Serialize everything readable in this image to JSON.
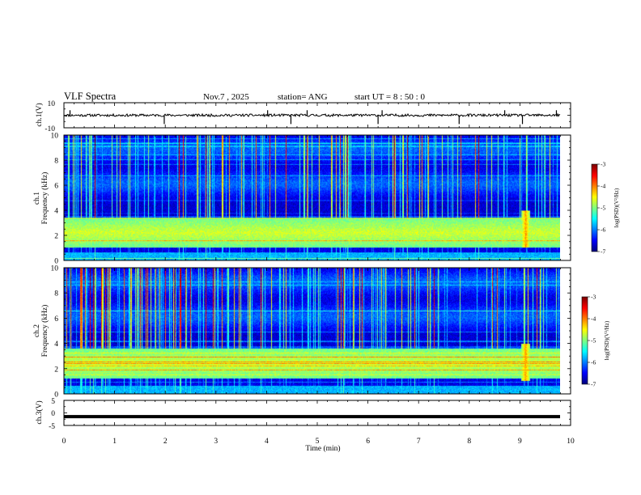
{
  "header": {
    "title": "VLF Spectra",
    "date": "Nov.7 , 2025",
    "station": "station= ANG",
    "start": "start UT = 8 : 50 : 0"
  },
  "chart_data": [
    {
      "type": "line",
      "name": "ch1-waveform",
      "ylabel": "ch.1(V)",
      "ylim": [
        -10,
        10
      ],
      "yticks": [
        "10",
        "-10"
      ],
      "xlim": [
        0,
        10
      ],
      "baseline": 0,
      "noise_amplitude": 1,
      "spikes_min": [
        0.12,
        1.98,
        4.02,
        4.48,
        4.8,
        6.2,
        6.28,
        7.8,
        8.7,
        9.05,
        9.72
      ]
    },
    {
      "type": "heatmap",
      "name": "ch1-spectrogram",
      "ylabel": "Frequency (kHz)",
      "channel_label": "ch.1",
      "ylim": [
        0,
        10
      ],
      "yticks": [
        "0",
        "2",
        "4",
        "6",
        "8",
        "10"
      ],
      "xlim": [
        0,
        10
      ],
      "enhanced_band_khz": [
        1.0,
        3.4
      ],
      "quiet_band_khz": [
        3.5,
        4.7
      ],
      "burst_min": 9.1,
      "colorbar": {
        "label": "log(PSD)(V²/Hz)",
        "ticks": [
          "-3",
          "-4",
          "-5",
          "-6",
          "-7"
        ],
        "range": [
          -7,
          -3
        ]
      }
    },
    {
      "type": "heatmap",
      "name": "ch2-spectrogram",
      "ylabel": "Frequency (kHz)",
      "channel_label": "ch.2",
      "ylim": [
        0,
        10
      ],
      "yticks": [
        "0",
        "2",
        "4",
        "6",
        "8",
        "10"
      ],
      "xlim": [
        0,
        10
      ],
      "enhanced_band_khz": [
        1.2,
        3.6
      ],
      "quiet_band_khz": [
        3.8,
        4.9
      ],
      "burst_min": 9.1,
      "colorbar": {
        "label": "log(PSD)(V²/Hz)",
        "ticks": [
          "-3",
          "-4",
          "-5",
          "-6",
          "-7"
        ],
        "range": [
          -7,
          -3
        ]
      }
    },
    {
      "type": "line",
      "name": "ch3-waveform",
      "ylabel": "ch.3(V)",
      "ylim": [
        -5,
        5
      ],
      "yticks": [
        "5",
        "0",
        "-5"
      ],
      "xlim": [
        0,
        10
      ],
      "level": -1.5
    }
  ],
  "xaxis": {
    "label": "Time (min)",
    "ticks": [
      "0",
      "1",
      "2",
      "3",
      "4",
      "5",
      "6",
      "7",
      "8",
      "9",
      "10"
    ]
  }
}
